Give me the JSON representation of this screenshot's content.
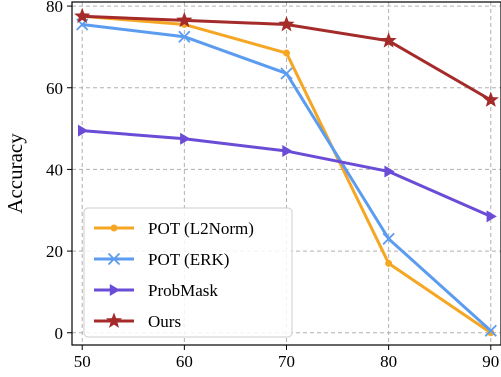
{
  "chart_data": {
    "type": "line",
    "xlabel": "",
    "ylabel": "Accuracy",
    "x": [
      50,
      60,
      70,
      80,
      90
    ],
    "xticks": [
      "50",
      "60",
      "70",
      "80",
      "90"
    ],
    "yticks": [
      "0",
      "20",
      "40",
      "60",
      "80"
    ],
    "xlim": [
      49,
      91
    ],
    "ylim": [
      -3,
      81
    ],
    "grid": true,
    "legend_position": "lower-left",
    "series": [
      {
        "name": "POT (L2Norm)",
        "values": [
          77.5,
          75.5,
          68.5,
          17.0,
          0.0
        ],
        "color": "#f5a623",
        "marker": "circle"
      },
      {
        "name": "POT (ERK)",
        "values": [
          75.5,
          72.5,
          63.5,
          23.0,
          0.5
        ],
        "color": "#5b9cf0",
        "marker": "x"
      },
      {
        "name": "ProbMask",
        "values": [
          49.5,
          47.5,
          44.5,
          39.5,
          28.5
        ],
        "color": "#6a4cd6",
        "marker": "triangle-right"
      },
      {
        "name": "Ours",
        "values": [
          77.5,
          76.5,
          75.5,
          71.5,
          57.0
        ],
        "color": "#a52a2a",
        "marker": "star"
      }
    ]
  }
}
